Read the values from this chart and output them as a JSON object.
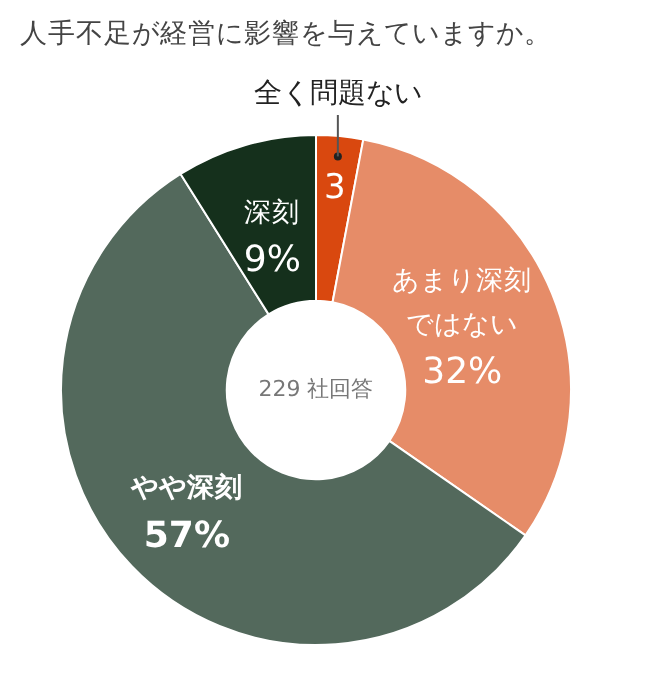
{
  "chart_data": {
    "type": "donut",
    "title": "人手不足が経営に影響を与えていますか。",
    "categories": [
      "全く問題ない",
      "あまり深刻ではない",
      "やや深刻",
      "深刻"
    ],
    "values": [
      3,
      32,
      57,
      9
    ],
    "colors": [
      "#d9480f",
      "#e68c68",
      "#53695c",
      "#15301c"
    ],
    "value_labels": [
      "3",
      "32%",
      "57%",
      "9%"
    ],
    "annotations": [
      "229 社回答"
    ],
    "legend": false
  }
}
